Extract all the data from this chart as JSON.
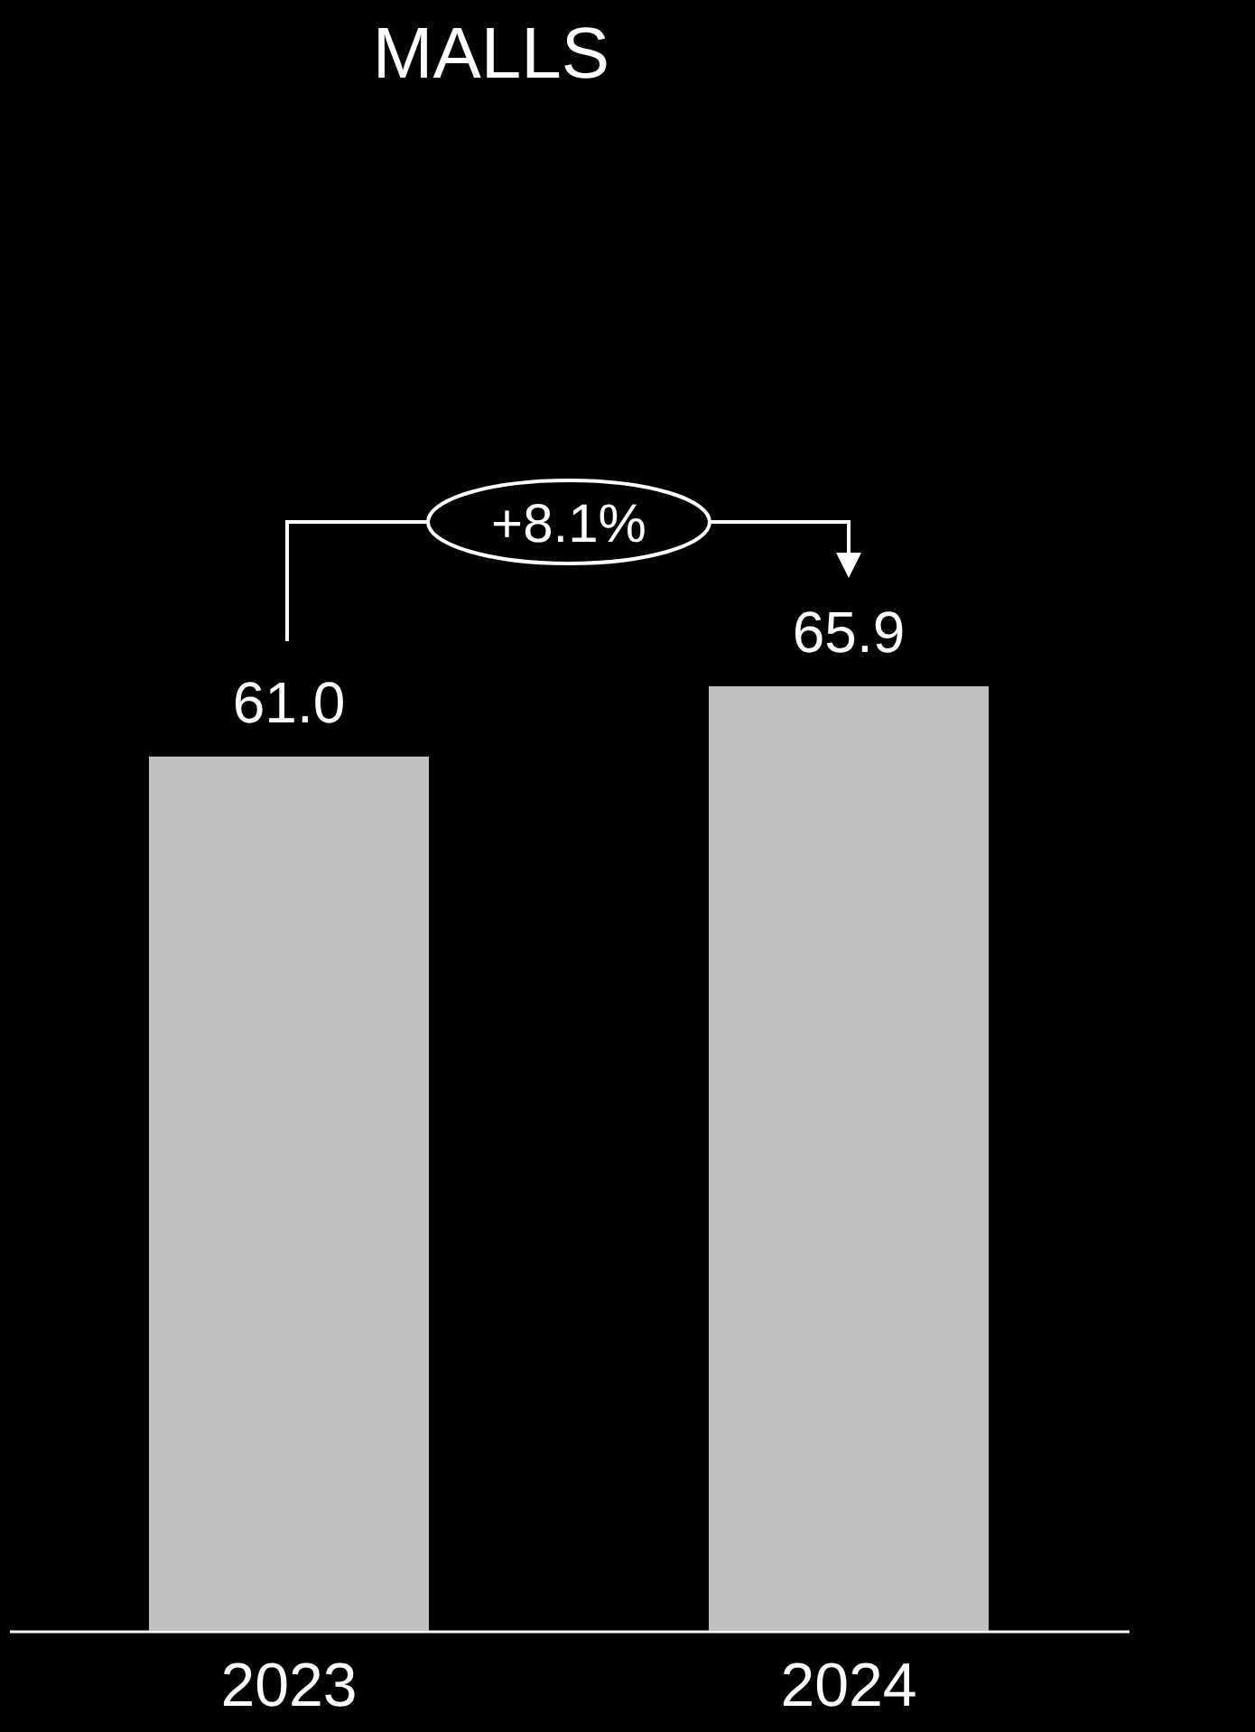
{
  "chart_data": {
    "type": "bar",
    "title": "MALLS",
    "categories": [
      "2023",
      "2024"
    ],
    "values": [
      61.0,
      65.9
    ],
    "value_labels": [
      "61.0",
      "65.9"
    ],
    "color": "#c0c0c0",
    "tick_labels": "x",
    "annotations": [
      "+8.1%"
    ]
  }
}
